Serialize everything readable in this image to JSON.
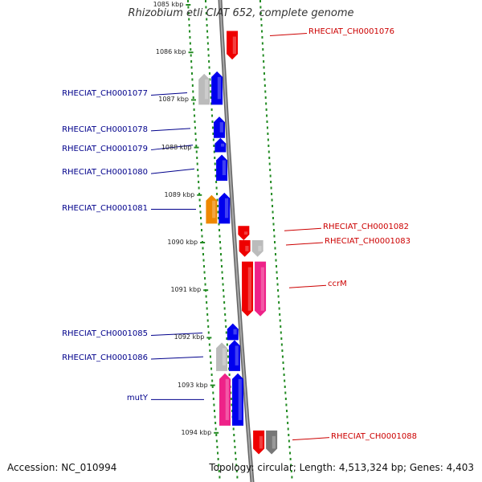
{
  "title": "Rhizobium etli CIAT 652, complete genome",
  "accession": "Accession: NC_010994",
  "topology": "Topology: circular; Length: 4,513,324 bp; Genes: 4,403",
  "colors": {
    "forward": "#0000ee",
    "reverse": "#ee0000",
    "grey": "#bbbbbb",
    "pink": "#ee2288",
    "orange": "#ee8800",
    "dark_grey": "#777777",
    "tick": "#228b22",
    "axis": "#888888",
    "label_left": "#00008b",
    "label_right": "#cc0000"
  },
  "scale": {
    "unit": "kbp",
    "ticks": [
      {
        "kbp": 1085,
        "label": "1085 kbp"
      },
      {
        "kbp": 1086,
        "label": "1086 kbp"
      },
      {
        "kbp": 1087,
        "label": "1087 kbp"
      },
      {
        "kbp": 1088,
        "label": "1088 kbp"
      },
      {
        "kbp": 1089,
        "label": "1089 kbp"
      },
      {
        "kbp": 1090,
        "label": "1090 kbp"
      },
      {
        "kbp": 1091,
        "label": "1091 kbp"
      },
      {
        "kbp": 1092,
        "label": "1092 kbp"
      },
      {
        "kbp": 1093,
        "label": "1093 kbp"
      },
      {
        "kbp": 1094,
        "label": "1094 kbp"
      }
    ]
  },
  "genes": [
    {
      "id": "RHECIAT_CH0001076",
      "strand": "reverse",
      "color": "reverse",
      "start_kbp": 1085.55,
      "end_kbp": 1086.15
    },
    {
      "id": "",
      "strand": "forward",
      "color": "grey",
      "start_kbp": 1086.45,
      "end_kbp": 1087.1
    },
    {
      "id": "RHECIAT_CH0001077",
      "strand": "forward",
      "color": "forward",
      "start_kbp": 1086.4,
      "end_kbp": 1087.1
    },
    {
      "id": "RHECIAT_CH0001078",
      "strand": "forward",
      "color": "forward",
      "start_kbp": 1087.35,
      "end_kbp": 1087.8
    },
    {
      "id": "RHECIAT_CH0001079",
      "strand": "forward",
      "color": "forward",
      "start_kbp": 1087.8,
      "end_kbp": 1088.1
    },
    {
      "id": "RHECIAT_CH0001080",
      "strand": "forward",
      "color": "forward",
      "start_kbp": 1088.15,
      "end_kbp": 1088.7
    },
    {
      "id": "",
      "strand": "forward",
      "color": "orange",
      "start_kbp": 1089.0,
      "end_kbp": 1089.6
    },
    {
      "id": "RHECIAT_CH0001081",
      "strand": "forward",
      "color": "forward",
      "start_kbp": 1088.95,
      "end_kbp": 1089.6
    },
    {
      "id": "RHECIAT_CH0001082",
      "strand": "reverse",
      "color": "reverse",
      "start_kbp": 1089.65,
      "end_kbp": 1089.95
    },
    {
      "id": "",
      "strand": "reverse",
      "color": "reverse",
      "start_kbp": 1089.95,
      "end_kbp": 1090.3
    },
    {
      "id": "RHECIAT_CH0001083",
      "strand": "reverse",
      "color": "grey",
      "start_kbp": 1089.95,
      "end_kbp": 1090.3
    },
    {
      "id": "",
      "strand": "reverse",
      "color": "reverse",
      "start_kbp": 1090.4,
      "end_kbp": 1091.55
    },
    {
      "id": "ccrM",
      "strand": "reverse",
      "color": "pink",
      "start_kbp": 1090.4,
      "end_kbp": 1091.55
    },
    {
      "id": "RHECIAT_CH0001085",
      "strand": "forward",
      "color": "forward",
      "start_kbp": 1091.7,
      "end_kbp": 1092.05
    },
    {
      "id": "",
      "strand": "forward",
      "color": "grey",
      "start_kbp": 1092.1,
      "end_kbp": 1092.7
    },
    {
      "id": "RHECIAT_CH0001086",
      "strand": "forward",
      "color": "forward",
      "start_kbp": 1092.05,
      "end_kbp": 1092.7
    },
    {
      "id": "",
      "strand": "forward",
      "color": "pink",
      "start_kbp": 1092.75,
      "end_kbp": 1093.85
    },
    {
      "id": "mutY",
      "strand": "forward",
      "color": "forward",
      "start_kbp": 1092.75,
      "end_kbp": 1093.85
    },
    {
      "id": "RHECIAT_CH0001088",
      "strand": "reverse",
      "color": "reverse",
      "start_kbp": 1093.95,
      "end_kbp": 1094.45
    },
    {
      "id": "",
      "strand": "reverse",
      "color": "dark_grey",
      "start_kbp": 1093.95,
      "end_kbp": 1094.45
    }
  ],
  "labels": {
    "left": [
      {
        "text": "RHECIAT_CH0001077"
      },
      {
        "text": "RHECIAT_CH0001078"
      },
      {
        "text": "RHECIAT_CH0001079"
      },
      {
        "text": "RHECIAT_CH0001080"
      },
      {
        "text": "RHECIAT_CH0001081"
      },
      {
        "text": "RHECIAT_CH0001085"
      },
      {
        "text": "RHECIAT_CH0001086"
      },
      {
        "text": "mutY"
      }
    ],
    "right": [
      {
        "text": "RHECIAT_CH0001076"
      },
      {
        "text": "RHECIAT_CH0001082"
      },
      {
        "text": "RHECIAT_CH0001083"
      },
      {
        "text": "ccrM"
      },
      {
        "text": "RHECIAT_CH0001088"
      }
    ]
  }
}
